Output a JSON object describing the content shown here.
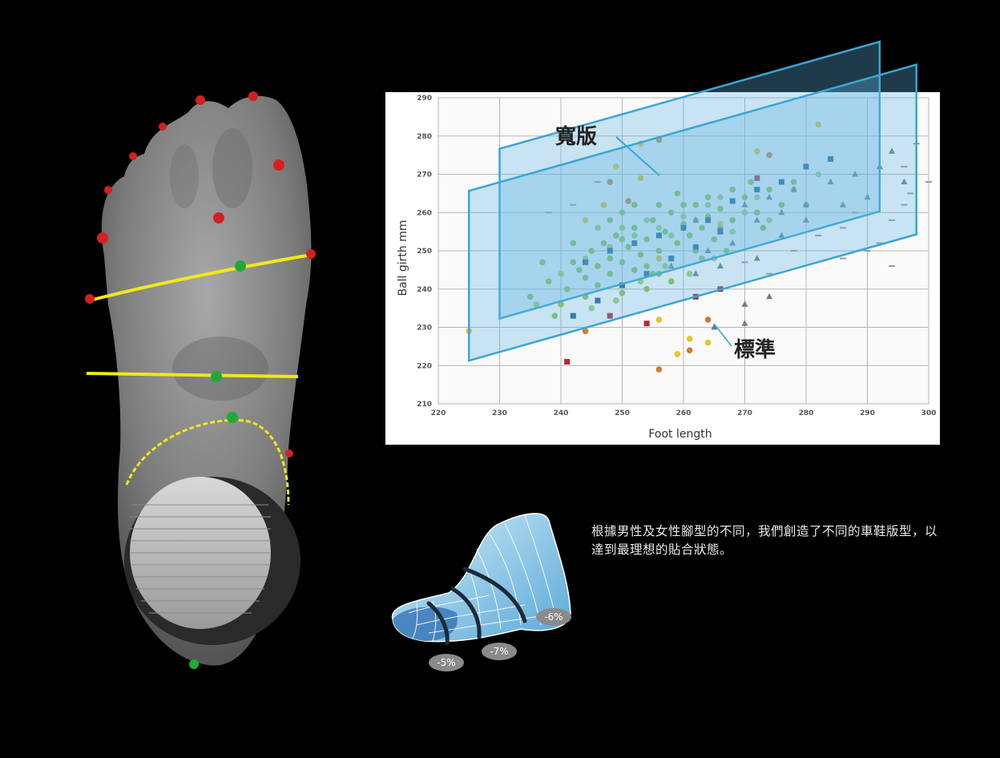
{
  "description": {
    "text": "根據男性及女性腳型的不同，我們創造了不同的車鞋版型，以達到最理想的貼合狀態。"
  },
  "shoe_last": {
    "reductions": [
      "-5%",
      "-7%",
      "-6%"
    ]
  },
  "colors": {
    "background": "#000000",
    "plane_fill": "#5fb4e4",
    "plane_edge": "#3aa6d4",
    "measurement_line": "#f0e81a",
    "landmark_red": "#d42020",
    "landmark_green": "#1fa83a"
  },
  "chart_data": {
    "type": "scatter",
    "xlabel": "Foot length",
    "ylabel": "Ball girth mm",
    "xlim": [
      220,
      300
    ],
    "ylim": [
      210,
      290
    ],
    "x_ticks": [
      220,
      230,
      240,
      250,
      260,
      270,
      280,
      290,
      300
    ],
    "y_ticks": [
      210,
      220,
      230,
      240,
      250,
      260,
      270,
      280,
      290
    ],
    "grid": true,
    "band_labels": {
      "wide": "寬版",
      "standard": "標準"
    },
    "bands": [
      {
        "name": "寬版",
        "x": [
          230,
          292
        ],
        "y_start": [
          248,
          262
        ],
        "y_end": [
          276,
          290
        ]
      },
      {
        "name": "標準",
        "x": [
          225,
          298
        ],
        "y_start": [
          237,
          251
        ],
        "y_end": [
          270,
          284
        ]
      }
    ],
    "series": [
      {
        "color": "#8cc63f",
        "marker": "circle",
        "points": [
          [
            235,
            238
          ],
          [
            238,
            242
          ],
          [
            240,
            236
          ],
          [
            242,
            247
          ],
          [
            244,
            243
          ],
          [
            245,
            250
          ],
          [
            246,
            246
          ],
          [
            247,
            252
          ],
          [
            248,
            248
          ],
          [
            249,
            254
          ],
          [
            250,
            247
          ],
          [
            251,
            251
          ],
          [
            252,
            256
          ],
          [
            253,
            249
          ],
          [
            254,
            253
          ],
          [
            255,
            258
          ],
          [
            256,
            250
          ],
          [
            257,
            255
          ],
          [
            258,
            260
          ],
          [
            259,
            252
          ],
          [
            260,
            257
          ],
          [
            261,
            254
          ],
          [
            262,
            262
          ],
          [
            263,
            256
          ],
          [
            264,
            259
          ],
          [
            265,
            253
          ],
          [
            266,
            261
          ],
          [
            268,
            258
          ],
          [
            270,
            264
          ],
          [
            272,
            260
          ],
          [
            274,
            266
          ],
          [
            276,
            262
          ],
          [
            278,
            268
          ],
          [
            280,
            262
          ],
          [
            241,
            240
          ],
          [
            243,
            245
          ],
          [
            246,
            241
          ],
          [
            248,
            244
          ],
          [
            250,
            253
          ],
          [
            252,
            245
          ],
          [
            254,
            246
          ],
          [
            256,
            244
          ],
          [
            258,
            248
          ],
          [
            260,
            262
          ],
          [
            262,
            250
          ],
          [
            264,
            264
          ],
          [
            266,
            256
          ],
          [
            268,
            266
          ],
          [
            248,
            258
          ],
          [
            250,
            260
          ],
          [
            252,
            262
          ],
          [
            254,
            240
          ],
          [
            256,
            262
          ],
          [
            258,
            242
          ],
          [
            244,
            238
          ],
          [
            239,
            233
          ],
          [
            237,
            247
          ],
          [
            242,
            252
          ],
          [
            250,
            239
          ],
          [
            255,
            244
          ],
          [
            259,
            265
          ],
          [
            263,
            248
          ],
          [
            267,
            250
          ],
          [
            271,
            268
          ],
          [
            273,
            256
          ]
        ]
      },
      {
        "color": "#9ed36a",
        "marker": "circle",
        "points": [
          [
            236,
            236
          ],
          [
            240,
            244
          ],
          [
            244,
            248
          ],
          [
            248,
            251
          ],
          [
            252,
            254
          ],
          [
            256,
            256
          ],
          [
            260,
            259
          ],
          [
            264,
            262
          ],
          [
            268,
            255
          ],
          [
            272,
            264
          ],
          [
            246,
            256
          ],
          [
            250,
            256
          ],
          [
            254,
            258
          ],
          [
            258,
            254
          ],
          [
            262,
            258
          ],
          [
            266,
            264
          ],
          [
            270,
            260
          ],
          [
            274,
            258
          ],
          [
            278,
            266
          ],
          [
            282,
            270
          ],
          [
            245,
            235
          ],
          [
            249,
            237
          ],
          [
            253,
            242
          ],
          [
            257,
            246
          ],
          [
            261,
            244
          ],
          [
            265,
            248
          ]
        ]
      },
      {
        "color": "#6b7f8f",
        "marker": "triangle",
        "points": [
          [
            262,
            258
          ],
          [
            266,
            256
          ],
          [
            270,
            262
          ],
          [
            272,
            258
          ],
          [
            274,
            264
          ],
          [
            276,
            260
          ],
          [
            278,
            266
          ],
          [
            280,
            262
          ],
          [
            284,
            268
          ],
          [
            288,
            270
          ],
          [
            292,
            272
          ],
          [
            264,
            250
          ],
          [
            268,
            252
          ],
          [
            272,
            248
          ],
          [
            276,
            254
          ],
          [
            280,
            258
          ],
          [
            265,
            230
          ],
          [
            270,
            236
          ],
          [
            274,
            238
          ],
          [
            258,
            246
          ],
          [
            262,
            244
          ],
          [
            266,
            246
          ],
          [
            286,
            262
          ],
          [
            290,
            264
          ],
          [
            294,
            276
          ],
          [
            296,
            268
          ],
          [
            270,
            231
          ]
        ]
      },
      {
        "color": "#1e5f8a",
        "marker": "square",
        "points": [
          [
            242,
            233
          ],
          [
            246,
            237
          ],
          [
            250,
            241
          ],
          [
            254,
            244
          ],
          [
            258,
            248
          ],
          [
            262,
            251
          ],
          [
            266,
            255
          ],
          [
            244,
            247
          ],
          [
            248,
            250
          ],
          [
            252,
            252
          ],
          [
            256,
            254
          ],
          [
            260,
            256
          ],
          [
            264,
            258
          ],
          [
            268,
            263
          ],
          [
            272,
            266
          ],
          [
            276,
            268
          ],
          [
            280,
            272
          ],
          [
            284,
            274
          ]
        ]
      },
      {
        "color": "#e3c72a",
        "marker": "circle",
        "points": [
          [
            225,
            229
          ],
          [
            247,
            262
          ],
          [
            253,
            269
          ],
          [
            256,
            232
          ],
          [
            259,
            223
          ],
          [
            264,
            226
          ],
          [
            272,
            276
          ],
          [
            282,
            283
          ],
          [
            244,
            258
          ],
          [
            253,
            278
          ],
          [
            261,
            227
          ],
          [
            249,
            272
          ],
          [
            266,
            257
          ],
          [
            256,
            248
          ]
        ]
      },
      {
        "color": "#d87a2a",
        "marker": "circle",
        "points": [
          [
            256,
            279
          ],
          [
            248,
            268
          ],
          [
            256,
            219
          ],
          [
            244,
            229
          ],
          [
            264,
            232
          ],
          [
            251,
            263
          ],
          [
            274,
            275
          ],
          [
            261,
            224
          ]
        ]
      },
      {
        "color": "#b22a3a",
        "marker": "square",
        "points": [
          [
            241,
            221
          ],
          [
            254,
            231
          ],
          [
            262,
            238
          ],
          [
            272,
            269
          ],
          [
            248,
            233
          ],
          [
            266,
            240
          ]
        ]
      },
      {
        "color": "#9a9a9a",
        "marker": "dash",
        "points": [
          [
            238,
            260
          ],
          [
            242,
            262
          ],
          [
            246,
            268
          ],
          [
            270,
            247
          ],
          [
            274,
            244
          ],
          [
            278,
            250
          ],
          [
            282,
            254
          ],
          [
            286,
            256
          ],
          [
            290,
            250
          ],
          [
            294,
            258
          ],
          [
            296,
            272
          ],
          [
            298,
            278
          ],
          [
            286,
            248
          ],
          [
            292,
            252
          ],
          [
            294,
            246
          ],
          [
            297,
            265
          ],
          [
            288,
            260
          ],
          [
            300,
            268
          ],
          [
            296,
            262
          ]
        ]
      }
    ]
  }
}
